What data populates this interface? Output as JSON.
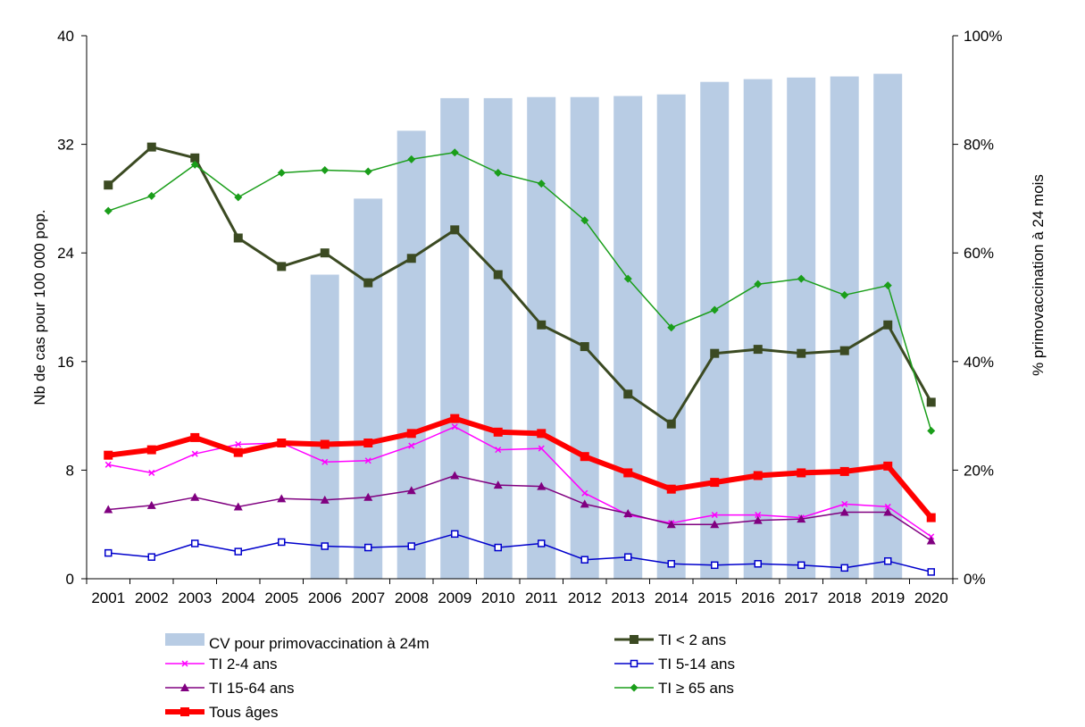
{
  "chart_data": {
    "type": "bar+line",
    "categories": [
      "2001",
      "2002",
      "2003",
      "2004",
      "2005",
      "2006",
      "2007",
      "2008",
      "2009",
      "2010",
      "2011",
      "2012",
      "2013",
      "2014",
      "2015",
      "2016",
      "2017",
      "2018",
      "2019",
      "2020"
    ],
    "y_left": {
      "label": "Nb de cas pour 100 000  pop.",
      "ylim": [
        0,
        40
      ],
      "ticks": [
        "0",
        "8",
        "16",
        "24",
        "32",
        "40"
      ]
    },
    "y_right": {
      "label": "% primovaccination à 24 mois",
      "ylim": [
        0,
        100
      ],
      "ticks": [
        "0%",
        "20%",
        "40%",
        "60%",
        "80%",
        "100%"
      ]
    },
    "bar_series": {
      "name": "CV pour primovaccination à 24m",
      "color": "#b8cce4",
      "axis": "right",
      "values": [
        null,
        null,
        null,
        null,
        null,
        56,
        70,
        82.5,
        88.5,
        88.5,
        88.7,
        88.7,
        88.9,
        89.2,
        91.5,
        92,
        92.3,
        92.5,
        93,
        null
      ]
    },
    "series": [
      {
        "name": "TI < 2 ans",
        "color": "#3b4a22",
        "marker": "square-filled",
        "width": 3,
        "values": [
          29,
          31.8,
          31,
          25.1,
          23,
          24,
          21.8,
          23.6,
          25.7,
          22.4,
          18.7,
          17.1,
          13.6,
          11.4,
          16.6,
          16.9,
          16.6,
          16.8,
          18.7,
          13
        ]
      },
      {
        "name": "TI 2-4 ans",
        "color": "#ff00ff",
        "marker": "cross",
        "width": 1.5,
        "values": [
          8.4,
          7.8,
          9.2,
          9.9,
          10,
          8.6,
          8.7,
          9.8,
          11.2,
          9.5,
          9.6,
          6.3,
          4.7,
          4.1,
          4.7,
          4.7,
          4.5,
          5.5,
          5.3,
          3.1
        ]
      },
      {
        "name": "TI 5-14 ans",
        "color": "#0000cc",
        "marker": "square-open",
        "width": 1.5,
        "values": [
          1.9,
          1.6,
          2.6,
          2,
          2.7,
          2.4,
          2.3,
          2.4,
          3.3,
          2.3,
          2.6,
          1.4,
          1.6,
          1.1,
          1,
          1.1,
          1,
          0.8,
          1.3,
          0.5
        ]
      },
      {
        "name": "TI 15-64 ans",
        "color": "#800080",
        "marker": "triangle",
        "width": 1.5,
        "values": [
          5.1,
          5.4,
          6,
          5.3,
          5.9,
          5.8,
          6,
          6.5,
          7.6,
          6.9,
          6.8,
          5.5,
          4.8,
          4,
          4,
          4.3,
          4.4,
          4.9,
          4.9,
          2.8
        ]
      },
      {
        "name": "TI ≥ 65 ans",
        "color": "#1a9e1a",
        "marker": "diamond",
        "width": 1.5,
        "values": [
          27.1,
          28.2,
          30.5,
          28.1,
          29.9,
          30.1,
          30,
          30.9,
          31.4,
          29.9,
          29.1,
          26.4,
          22.1,
          18.5,
          19.8,
          21.7,
          22.1,
          20.9,
          21.6,
          10.9
        ]
      },
      {
        "name": "Tous âges",
        "color": "#ff0000",
        "marker": "square-filled",
        "width": 6,
        "values": [
          9.1,
          9.5,
          10.4,
          9.3,
          10,
          9.9,
          10,
          10.7,
          11.8,
          10.8,
          10.7,
          9,
          7.8,
          6.6,
          7.1,
          7.6,
          7.8,
          7.9,
          8.3,
          4.5
        ]
      }
    ],
    "legend_placement": "bottom",
    "grid": false
  }
}
